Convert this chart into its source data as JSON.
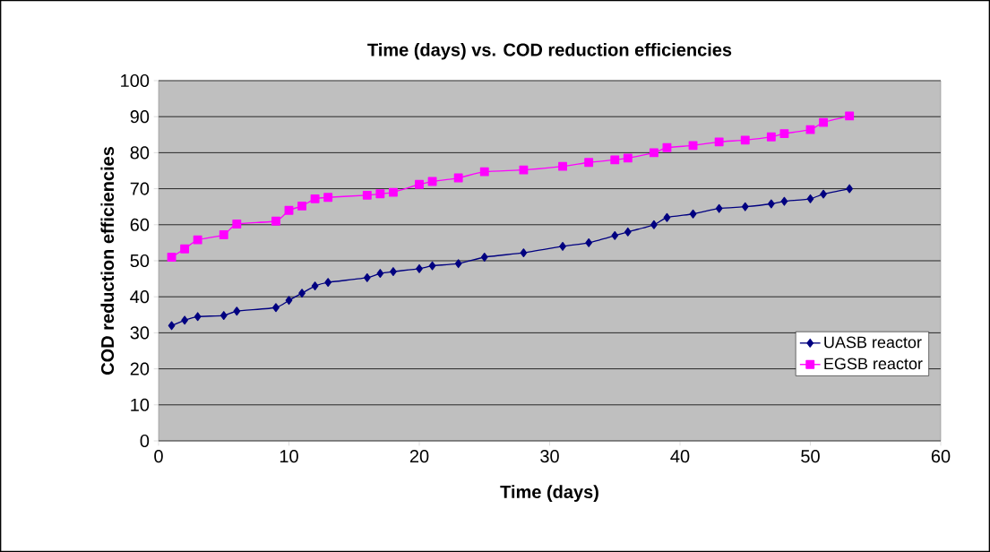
{
  "chart_data": {
    "type": "line",
    "title": "Time (days) vs. COD reduction efficiencies",
    "xlabel": "Time (days)",
    "ylabel": "COD reduction efficiencies",
    "x": [
      1,
      2,
      3,
      5,
      6,
      9,
      10,
      11,
      12,
      13,
      16,
      17,
      18,
      20,
      21,
      23,
      25,
      28,
      31,
      33,
      35,
      36,
      38,
      39,
      41,
      43,
      45,
      47,
      48,
      50,
      51,
      53
    ],
    "series": [
      {
        "name": "UASB reactor",
        "color": "#000080",
        "marker": "diamond",
        "values": [
          32,
          33.5,
          34.5,
          34.8,
          36,
          37,
          39,
          41,
          43,
          44,
          45.3,
          46.5,
          47,
          47.8,
          48.6,
          49.2,
          51,
          52.2,
          54,
          55,
          57,
          58,
          60,
          62,
          63,
          64.5,
          65,
          65.8,
          66.5,
          67.2,
          68.5,
          70
        ]
      },
      {
        "name": "EGSB reactor",
        "color": "#ff00ff",
        "marker": "square",
        "values": [
          51,
          53.3,
          55.8,
          57.2,
          60.2,
          61,
          64,
          65.2,
          67.2,
          67.6,
          68.2,
          68.6,
          69,
          71.2,
          72,
          73,
          74.7,
          75.2,
          76.2,
          77.3,
          78,
          78.5,
          80,
          81.4,
          82,
          83,
          83.5,
          84.4,
          85.3,
          86.4,
          88.4,
          90.2
        ]
      }
    ],
    "xlim": [
      0,
      60
    ],
    "xticks": [
      0,
      10,
      20,
      30,
      40,
      50,
      60
    ],
    "ylim": [
      0,
      100
    ],
    "yticks": [
      0,
      10,
      20,
      30,
      40,
      50,
      60,
      70,
      80,
      90,
      100
    ],
    "grid": "y",
    "legend": "bottom right",
    "line_style": "solid"
  }
}
